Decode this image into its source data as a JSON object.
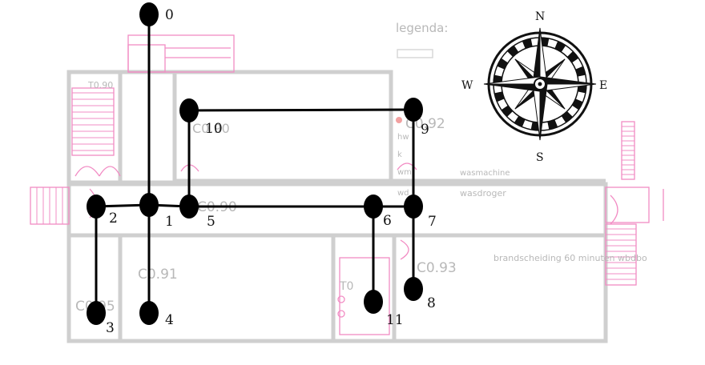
{
  "floorplan": {
    "legend_title": "legenda:",
    "rooms": [
      {
        "id": "t090",
        "label": "T0.90"
      },
      {
        "id": "c090_top",
        "label": "C0.90"
      },
      {
        "id": "c092",
        "label": "C0.92"
      },
      {
        "id": "c090_corr",
        "label": "C0.90"
      },
      {
        "id": "c091",
        "label": "C0.91"
      },
      {
        "id": "c095",
        "label": "C0.95"
      },
      {
        "id": "t0",
        "label": "T0"
      },
      {
        "id": "c093",
        "label": "C0.93"
      }
    ],
    "annotations": {
      "wasmachine": "wasmachine",
      "wasdroger": "wasdroger",
      "brandscheiding": "brandscheiding 60 minuten wbdbo",
      "hw": "hw",
      "k": "k",
      "wm": "wm",
      "wd": "wd"
    }
  },
  "compass": {
    "north": "N",
    "east": "E",
    "south": "S",
    "west": "W"
  },
  "graph": {
    "nodes": [
      {
        "id": 0,
        "label": "0"
      },
      {
        "id": 1,
        "label": "1"
      },
      {
        "id": 2,
        "label": "2"
      },
      {
        "id": 3,
        "label": "3"
      },
      {
        "id": 4,
        "label": "4"
      },
      {
        "id": 5,
        "label": "5"
      },
      {
        "id": 6,
        "label": "6"
      },
      {
        "id": 7,
        "label": "7"
      },
      {
        "id": 8,
        "label": "8"
      },
      {
        "id": 9,
        "label": "9"
      },
      {
        "id": 10,
        "label": "10"
      },
      {
        "id": 11,
        "label": "11"
      }
    ],
    "edges": [
      [
        0,
        1
      ],
      [
        1,
        2
      ],
      [
        2,
        3
      ],
      [
        1,
        4
      ],
      [
        1,
        5
      ],
      [
        5,
        6
      ],
      [
        6,
        7
      ],
      [
        7,
        8
      ],
      [
        6,
        11
      ],
      [
        7,
        9
      ],
      [
        9,
        10
      ],
      [
        10,
        5
      ]
    ]
  }
}
